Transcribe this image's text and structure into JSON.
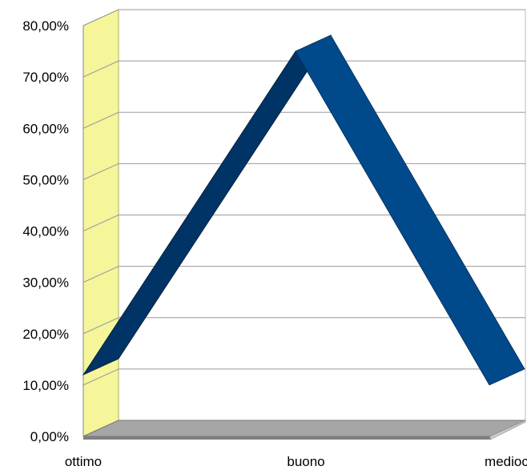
{
  "chart_data": {
    "type": "line",
    "title": "",
    "xlabel": "",
    "ylabel": "",
    "categories": [
      "ottimo",
      "buono",
      "mediocre"
    ],
    "series": [
      {
        "values": [
          12.0,
          75.0,
          10.0
        ]
      }
    ],
    "ylim": [
      0,
      80
    ],
    "yticks": [
      0,
      10,
      20,
      30,
      40,
      50,
      60,
      70,
      80
    ],
    "ytick_labels": [
      "0,00%",
      "10,00%",
      "20,00%",
      "30,00%",
      "40,00%",
      "50,00%",
      "60,00%",
      "70,00%",
      "80,00%"
    ],
    "grid": true,
    "legend": "none",
    "style": "3d-ribbon",
    "colors": {
      "ribbon_front": "#004A8C",
      "ribbon_dark": "#003366",
      "back_wall": "#FFFFFF",
      "side_wall": "#F5F59A",
      "floor": "#A6A6A6",
      "floor_edge": "#808080",
      "gridline": "#999999"
    }
  }
}
